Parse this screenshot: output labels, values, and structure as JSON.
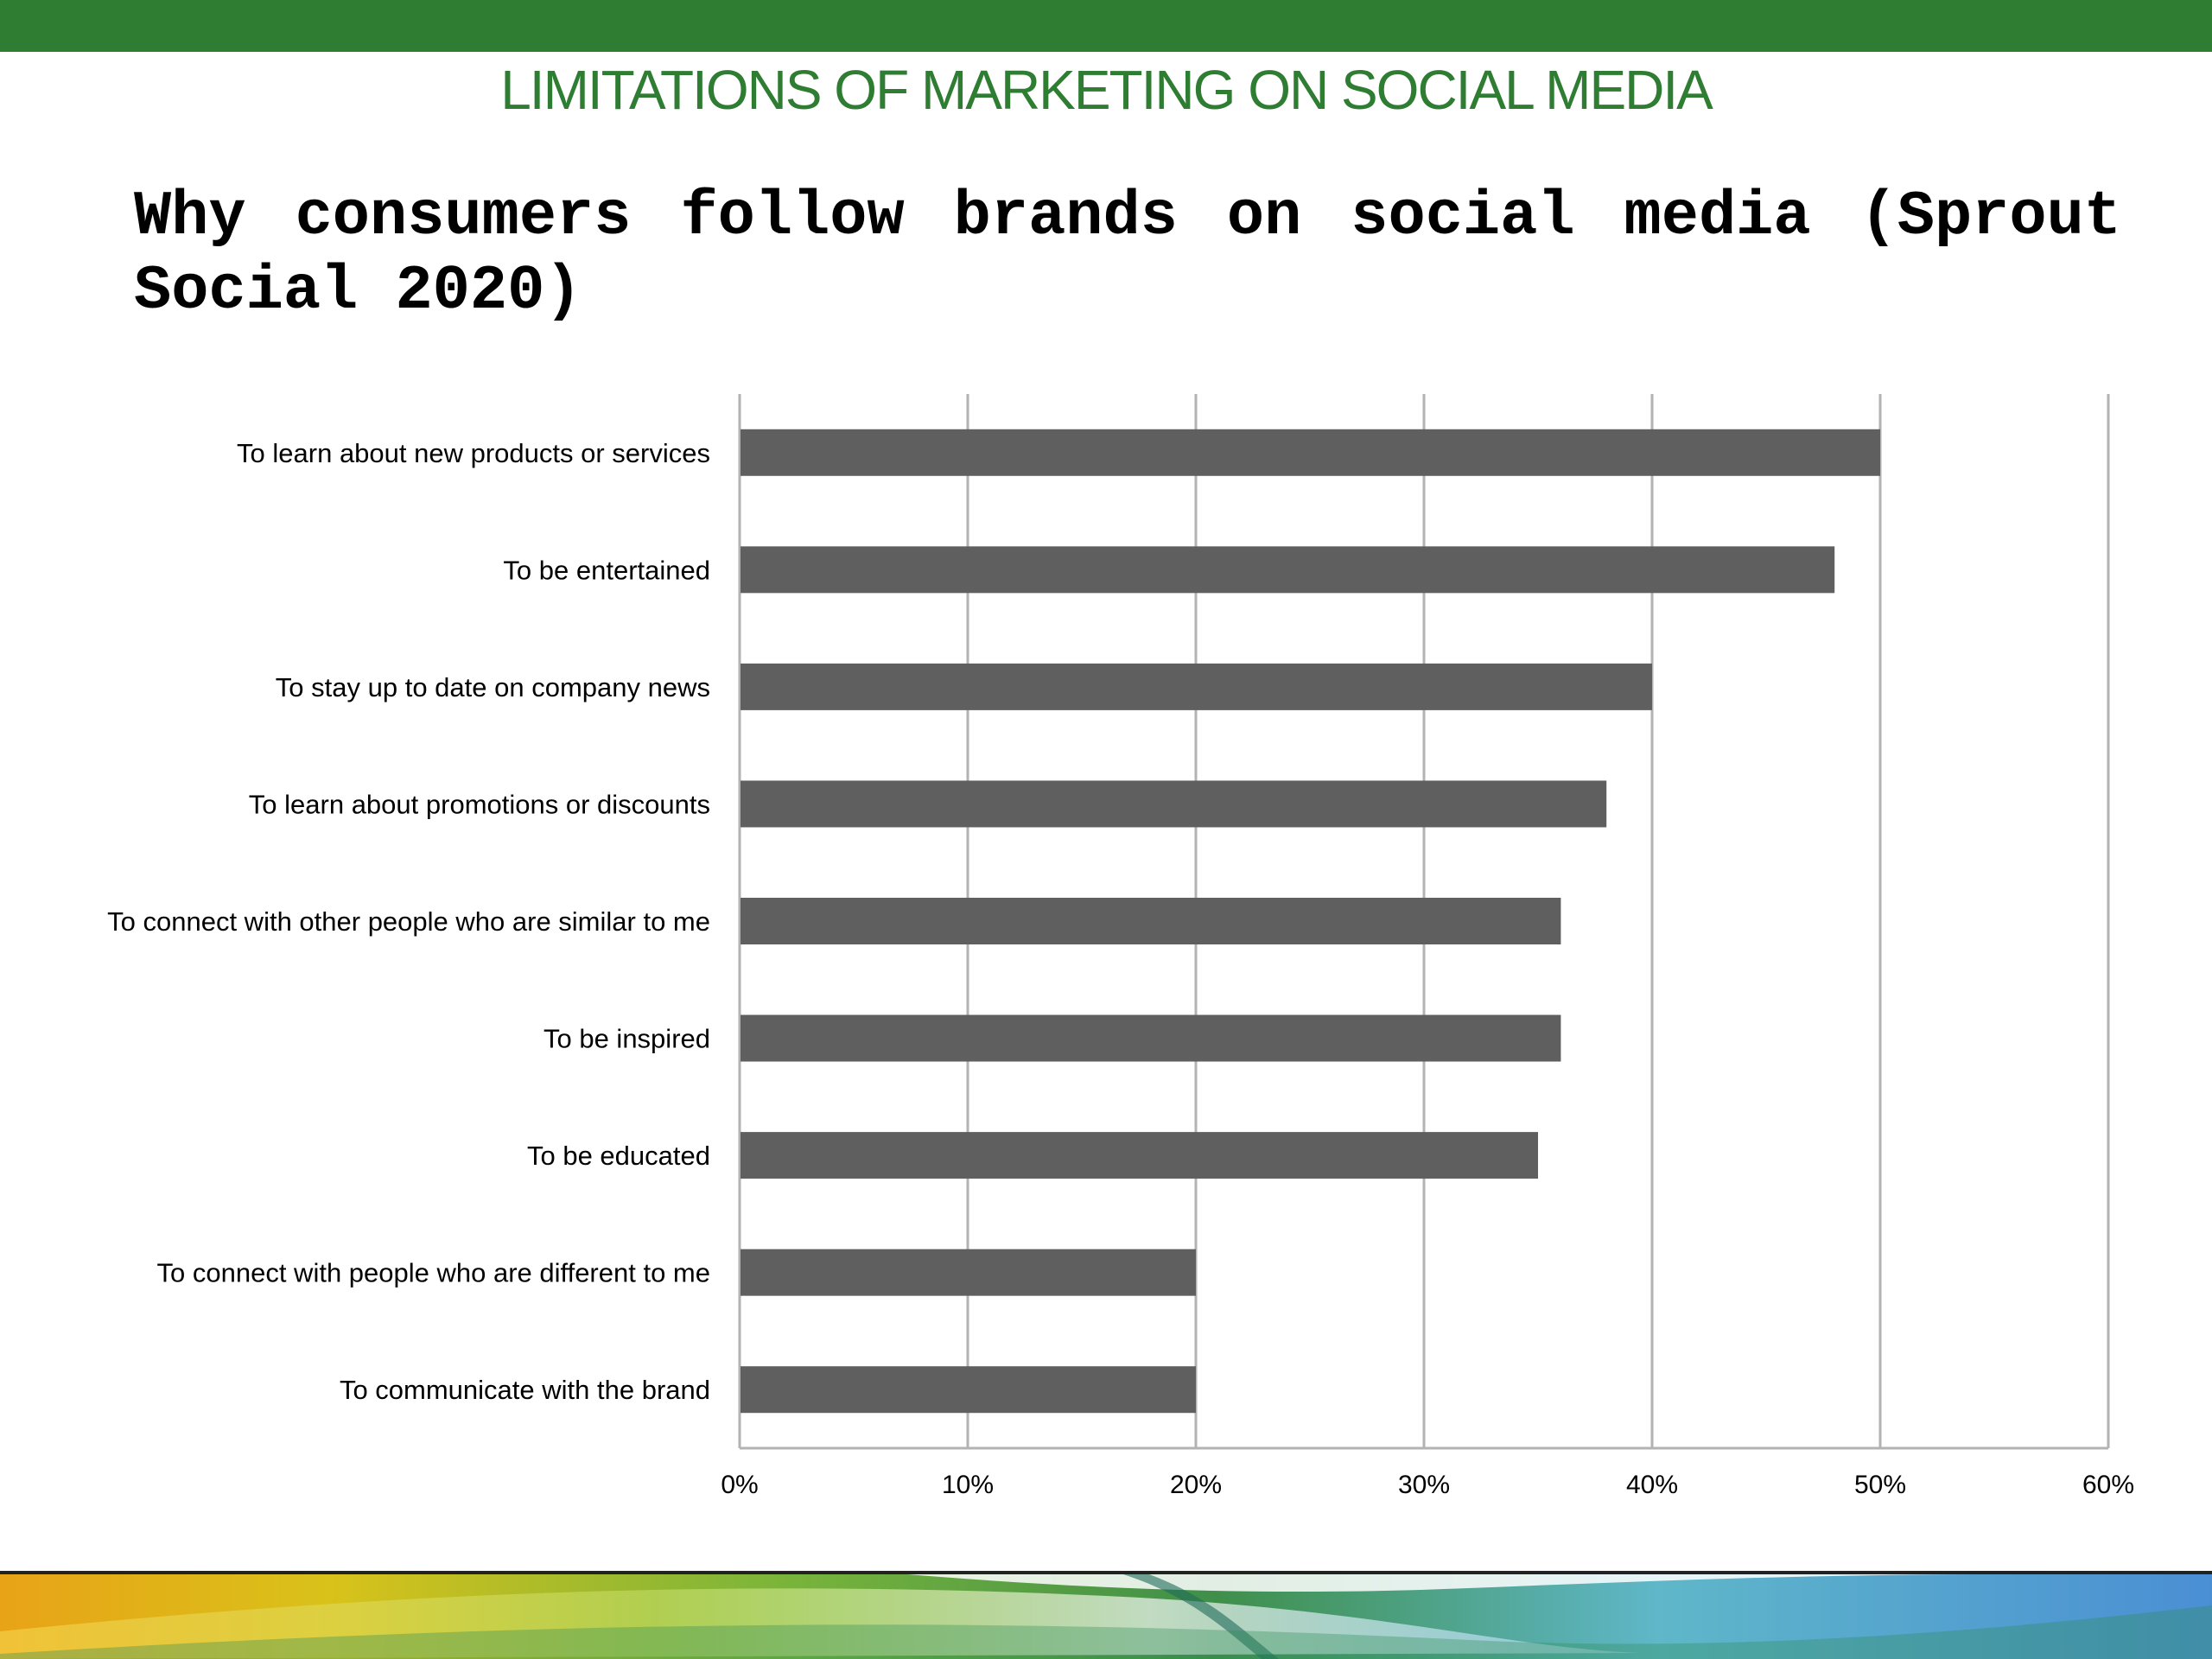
{
  "slide": {
    "header": "LIMITATIONS OF MARKETING ON SOCIAL MEDIA",
    "colors": {
      "brand_green": "#2e7d32",
      "header_text": "#2e7d32",
      "bar": "#5f5f5f",
      "grid": "#b3b3b3"
    }
  },
  "chart_data": {
    "type": "bar",
    "orientation": "horizontal",
    "title": "Why consumers follow brands on social media (Sprout Social 2020)",
    "xlabel": "",
    "ylabel": "",
    "categories": [
      "To learn about new products or services",
      "To be entertained",
      "To stay up to date on company news",
      "To learn about promotions or discounts",
      "To connect with other people who are similar to me",
      "To be inspired",
      "To be educated",
      "To connect with people who are different to me",
      "To communicate with the brand"
    ],
    "values": [
      50,
      48,
      40,
      38,
      36,
      36,
      35,
      20,
      20
    ],
    "value_unit": "%",
    "xlim": [
      0,
      60
    ],
    "ticks": [
      "0%",
      "10%",
      "20%",
      "30%",
      "40%",
      "50%",
      "60%"
    ],
    "grid": "vertical",
    "legend": "none"
  }
}
